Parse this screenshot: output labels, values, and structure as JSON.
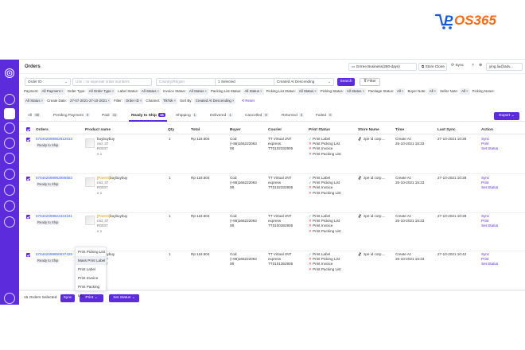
{
  "brand": {
    "name": "POS365",
    "prefix": "P",
    "rest": "OS365"
  },
  "header": {
    "title": "Orders",
    "store_select": "Grrree Business(280-days)",
    "store_clone": "Store Clone",
    "sync": "Sync",
    "user": "ying.liu@adv..."
  },
  "filters": {
    "order_id": "Order ID",
    "order_search_placeholder": "Use □ to seperate order numbers",
    "country_placeholder": "Country/Region",
    "selected": "1 Selected",
    "sort": "Created At Descending",
    "search": "Search",
    "filter": "Filter",
    "row1": [
      {
        "label": "Payment:",
        "value": "All Payment"
      },
      {
        "label": "Order Type:",
        "value": "All Order Type"
      },
      {
        "label": "Label Status:",
        "value": "All Status"
      },
      {
        "label": "Invoice Status:",
        "value": "All Status"
      },
      {
        "label": "Packing List Status:",
        "value": "All Status"
      },
      {
        "label": "Picking List Status:",
        "value": "All Status"
      },
      {
        "label": "Picking Status:",
        "value": "All Status"
      },
      {
        "label": "Package Status:",
        "value": "All"
      },
      {
        "label": "Buyer Note:",
        "value": "All"
      },
      {
        "label": "Seller Note:",
        "value": "All"
      },
      {
        "label": "Picking Notes:",
        "value": ""
      }
    ],
    "row2": [
      {
        "label": "",
        "value": "All Status"
      },
      {
        "label": "Create Date:",
        "value": "27-07-2021-27-10-2021"
      },
      {
        "label": "Filter:",
        "value": "Order ID"
      },
      {
        "label": "Channel:",
        "value": "TikTok"
      },
      {
        "label": "Sort By:",
        "value": "Created At Descending"
      }
    ],
    "reset": "Reset"
  },
  "tabs": [
    {
      "label": "All",
      "count": "88"
    },
    {
      "label": "Pending Payment",
      "count": "0"
    },
    {
      "label": "Paid",
      "count": "41"
    },
    {
      "label": "Ready to Ship",
      "count": "15"
    },
    {
      "label": "Shipping",
      "count": "1"
    },
    {
      "label": "Delivered",
      "count": "1"
    },
    {
      "label": "Cancelled",
      "count": "8"
    },
    {
      "label": "Returned",
      "count": "0"
    },
    {
      "label": "Failed",
      "count": "0"
    }
  ],
  "export": "Export",
  "columns": [
    "Orders",
    "Product name",
    "Qty",
    "Total",
    "Buyer",
    "Courier",
    "Print Status",
    "Store Name",
    "Time",
    "Last Sync",
    "Action"
  ],
  "rows": [
    {
      "order_no": "576462698982812813",
      "status": "Ready to Ship",
      "product_tag": "",
      "product": "buybuybuy",
      "variant": "red, 37",
      "sku": "R0037",
      "qty_line": "x 1",
      "qty": "1",
      "total": "Rp 118.504",
      "buyer_l1": "Cod",
      "buyer_l2": "(+86)166222063",
      "buyer_l3": "08",
      "courier_l1": "TT Virtual JNT",
      "courier_l2": "express",
      "courier_l3": "TT0102332905",
      "print": [
        [
          "Print Label",
          true
        ],
        [
          "Print Picking List",
          false
        ],
        [
          "Print Invoice",
          false
        ],
        [
          "Print Packing List",
          false
        ]
      ],
      "store": "zpe id corp....",
      "time_l1": "Create At:",
      "time_l2": "25-10-2021 15:33",
      "last_sync": "27-10-2021 10:38",
      "actions": [
        "Sync",
        "Print",
        "Set Status"
      ]
    },
    {
      "order_no": "576462698982986583",
      "status": "Ready to Ship",
      "product_tag": "[Parent]",
      "product": "buybuybuy",
      "variant": "red, 37",
      "sku": "R0037",
      "qty_line": "x 1",
      "qty": "1",
      "total": "Rp 118.504",
      "buyer_l1": "Cod",
      "buyer_l2": "(+86)166222063",
      "buyer_l3": "08",
      "courier_l1": "TT Virtual JNT",
      "courier_l2": "express",
      "courier_l3": "TT0102332905",
      "print": [
        [
          "Print Label",
          true
        ],
        [
          "Print Picking List",
          true
        ],
        [
          "Print Invoice",
          false
        ],
        [
          "Print Packing List",
          false
        ]
      ],
      "store": "zpe id corp....",
      "time_l1": "Create At:",
      "time_l2": "25-10-2021 15:33",
      "last_sync": "27-10-2021 10:38",
      "actions": [
        "Sync",
        "Print",
        "Set Status"
      ]
    },
    {
      "order_no": "576462698822324241",
      "status": "Ready to Ship",
      "product_tag": "[Parent]",
      "product": "buybuybuy",
      "variant": "red, 37",
      "sku": "R0037",
      "qty_line": "x 1",
      "qty": "1",
      "total": "Rp 118.504",
      "buyer_l1": "Cod",
      "buyer_l2": "(+86)166222063",
      "buyer_l3": "08",
      "courier_l1": "TT Virtual JNT",
      "courier_l2": "express",
      "courier_l3": "TT0100382905",
      "print": [
        [
          "Print Label",
          true
        ],
        [
          "Print Picking List",
          false
        ],
        [
          "Print Invoice",
          false
        ],
        [
          "Print Packing List",
          false
        ]
      ],
      "store": "zpe id corp....",
      "time_l1": "Create At:",
      "time_l2": "25-10-2021 15:33",
      "last_sync": "27-10-2021 10:38",
      "actions": [
        "Sync",
        "Print",
        "Set Status"
      ]
    },
    {
      "order_no": "576462698850037429",
      "status": "Ready to Ship",
      "product_tag": "",
      "product": "buybuybuy",
      "variant": "red, 37",
      "sku": "R0037",
      "qty_line": "x 1",
      "qty": "1",
      "total": "Rp 118.504",
      "buyer_l1": "Cod",
      "buyer_l2": "(+86)166222063",
      "buyer_l3": "08",
      "courier_l1": "TT Virtual JNT",
      "courier_l2": "express",
      "courier_l3": "TT0101362905",
      "print": [
        [
          "Print Label",
          true
        ],
        [
          "Print Picking List",
          false
        ],
        [
          "Print Invoice",
          false
        ],
        [
          "Print Packing List",
          false
        ]
      ],
      "store": "zpe id corp....",
      "time_l1": "Create At:",
      "time_l2": "25-10-2021 15:33",
      "last_sync": "27-10-2021 10:42",
      "actions": [
        "Sync",
        "Print",
        "Set Status"
      ]
    }
  ],
  "print_menu": [
    "Print Picking List",
    "Mass Print Label",
    "Print Label",
    "Print Invoice",
    "Print Packing List"
  ],
  "bulk": {
    "count": "15 Orders Selected",
    "sync": "Sync",
    "print": "Print",
    "set_status": "Set Status"
  },
  "colors": {
    "accent": "#5b2bdc",
    "brand_blue": "#1a56d6",
    "brand_orange": "#ff6a13",
    "link": "#2f5bea",
    "ok": "#1f9d55",
    "fail": "#e03131"
  }
}
